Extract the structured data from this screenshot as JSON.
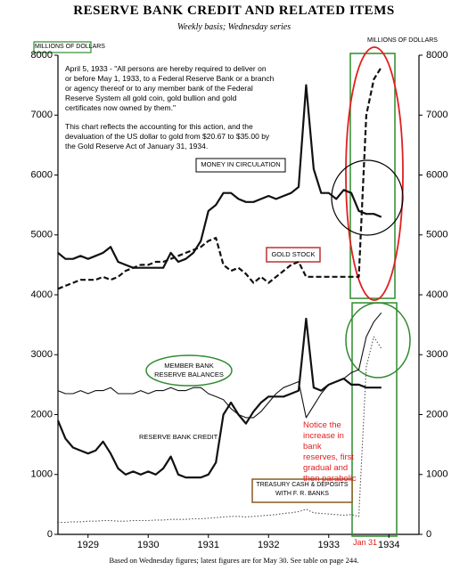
{
  "chart_data": {
    "type": "line",
    "title": "RESERVE BANK CREDIT AND RELATED ITEMS",
    "subtitle": "Weekly basis; Wednesday series",
    "y_label": "MILLIONS OF DOLLARS",
    "notes": [
      "April 5, 1933 - \"All persons are hereby required to deliver on or before May 1, 1933, to a Federal Reserve Bank or a branch or agency thereof or to any member bank of the Federal Reserve System all gold coin, gold bullion and gold certificates now owned by them.\"",
      "This chart reflects the accounting for this action, and the devaluation of the US dollar to gold from $20.67 to $35.00 by the Gold Reserve Act of January 31, 1934."
    ],
    "annotation": "Notice the increase in bank reserves, first gradual and then parabolic",
    "marker_label": "Jan 31",
    "footnote": "Based on Wednesday figures; latest figures are for May 30. See table on page 244.",
    "xlim": [
      1929,
      1935
    ],
    "xticks": [
      {
        "value": 1929.5,
        "label": "1929"
      },
      {
        "value": 1930.5,
        "label": "1930"
      },
      {
        "value": 1931.5,
        "label": "1931"
      },
      {
        "value": 1932.5,
        "label": "1932"
      },
      {
        "value": 1933.5,
        "label": "1933"
      },
      {
        "value": 1934.5,
        "label": "1934"
      }
    ],
    "ylim": [
      0,
      8000
    ],
    "yticks": [
      0,
      1000,
      2000,
      3000,
      4000,
      5000,
      6000,
      7000,
      8000
    ],
    "y2lim": [
      0,
      8000
    ],
    "y2ticks": [
      0,
      1000,
      2000,
      3000,
      4000,
      5000,
      6000,
      7000,
      8000
    ],
    "x": [
      1929.0,
      1929.125,
      1929.25,
      1929.375,
      1929.5,
      1929.625,
      1929.75,
      1929.875,
      1930.0,
      1930.125,
      1930.25,
      1930.375,
      1930.5,
      1930.625,
      1930.75,
      1930.875,
      1931.0,
      1931.125,
      1931.25,
      1931.375,
      1931.5,
      1931.625,
      1931.75,
      1931.875,
      1932.0,
      1932.125,
      1932.25,
      1932.375,
      1932.5,
      1932.625,
      1932.75,
      1932.875,
      1933.0,
      1933.125,
      1933.25,
      1933.375,
      1933.5,
      1933.625,
      1933.75,
      1933.875,
      1934.0,
      1934.125,
      1934.25,
      1934.375
    ],
    "series": [
      {
        "name": "MONEY IN CIRCULATION",
        "color": "#111111",
        "style": "solid",
        "weight": "bold",
        "values": [
          4700,
          4600,
          4600,
          4650,
          4600,
          4650,
          4700,
          4800,
          4550,
          4500,
          4450,
          4450,
          4450,
          4450,
          4450,
          4700,
          4550,
          4600,
          4700,
          4900,
          5400,
          5500,
          5700,
          5700,
          5600,
          5550,
          5550,
          5600,
          5650,
          5600,
          5650,
          5700,
          5800,
          7500,
          6100,
          5700,
          5700,
          5600,
          5750,
          5700,
          5400,
          5350,
          5350,
          5300
        ]
      },
      {
        "name": "GOLD STOCK",
        "color": "#111111",
        "style": "dashed",
        "weight": "bold",
        "values": [
          4100,
          4150,
          4200,
          4250,
          4250,
          4250,
          4300,
          4250,
          4300,
          4400,
          4450,
          4500,
          4500,
          4550,
          4550,
          4600,
          4650,
          4700,
          4750,
          4800,
          4900,
          4950,
          4500,
          4400,
          4450,
          4350,
          4200,
          4300,
          4200,
          4300,
          4400,
          4500,
          4550,
          4300,
          4300,
          4300,
          4300,
          4300,
          4300,
          4300,
          4300,
          7000,
          7600,
          7800
        ]
      },
      {
        "name": "MEMBER BANK RESERVE BALANCES",
        "color": "#111111",
        "style": "solid",
        "weight": "normal",
        "values": [
          2400,
          2350,
          2350,
          2400,
          2350,
          2400,
          2400,
          2450,
          2350,
          2350,
          2350,
          2400,
          2350,
          2400,
          2400,
          2450,
          2400,
          2400,
          2450,
          2450,
          2350,
          2300,
          2250,
          2100,
          2000,
          1950,
          1950,
          2050,
          2200,
          2350,
          2450,
          2500,
          2550,
          1950,
          2150,
          2350,
          2500,
          2550,
          2600,
          2700,
          2750,
          3300,
          3550,
          3700
        ]
      },
      {
        "name": "RESERVE BANK CREDIT",
        "color": "#111111",
        "style": "solid",
        "weight": "bold",
        "values": [
          1900,
          1600,
          1450,
          1400,
          1350,
          1400,
          1550,
          1350,
          1100,
          1000,
          1050,
          1000,
          1050,
          1000,
          1100,
          1300,
          1000,
          950,
          950,
          950,
          1000,
          1200,
          2000,
          2200,
          2000,
          1850,
          2050,
          2200,
          2300,
          2300,
          2300,
          2350,
          2400,
          3600,
          2450,
          2400,
          2500,
          2550,
          2600,
          2500,
          2500,
          2450,
          2450,
          2450
        ]
      },
      {
        "name": "TREASURY CASH & DEPOSITS WITH F. R. BANKS",
        "color": "#555555",
        "style": "dotted",
        "weight": "normal",
        "values": [
          200,
          200,
          210,
          210,
          220,
          220,
          230,
          230,
          220,
          220,
          230,
          230,
          230,
          240,
          240,
          250,
          250,
          250,
          260,
          260,
          270,
          280,
          290,
          300,
          300,
          290,
          300,
          310,
          320,
          330,
          350,
          360,
          380,
          420,
          360,
          350,
          340,
          330,
          320,
          330,
          300,
          2800,
          3300,
          3100
        ]
      }
    ]
  }
}
